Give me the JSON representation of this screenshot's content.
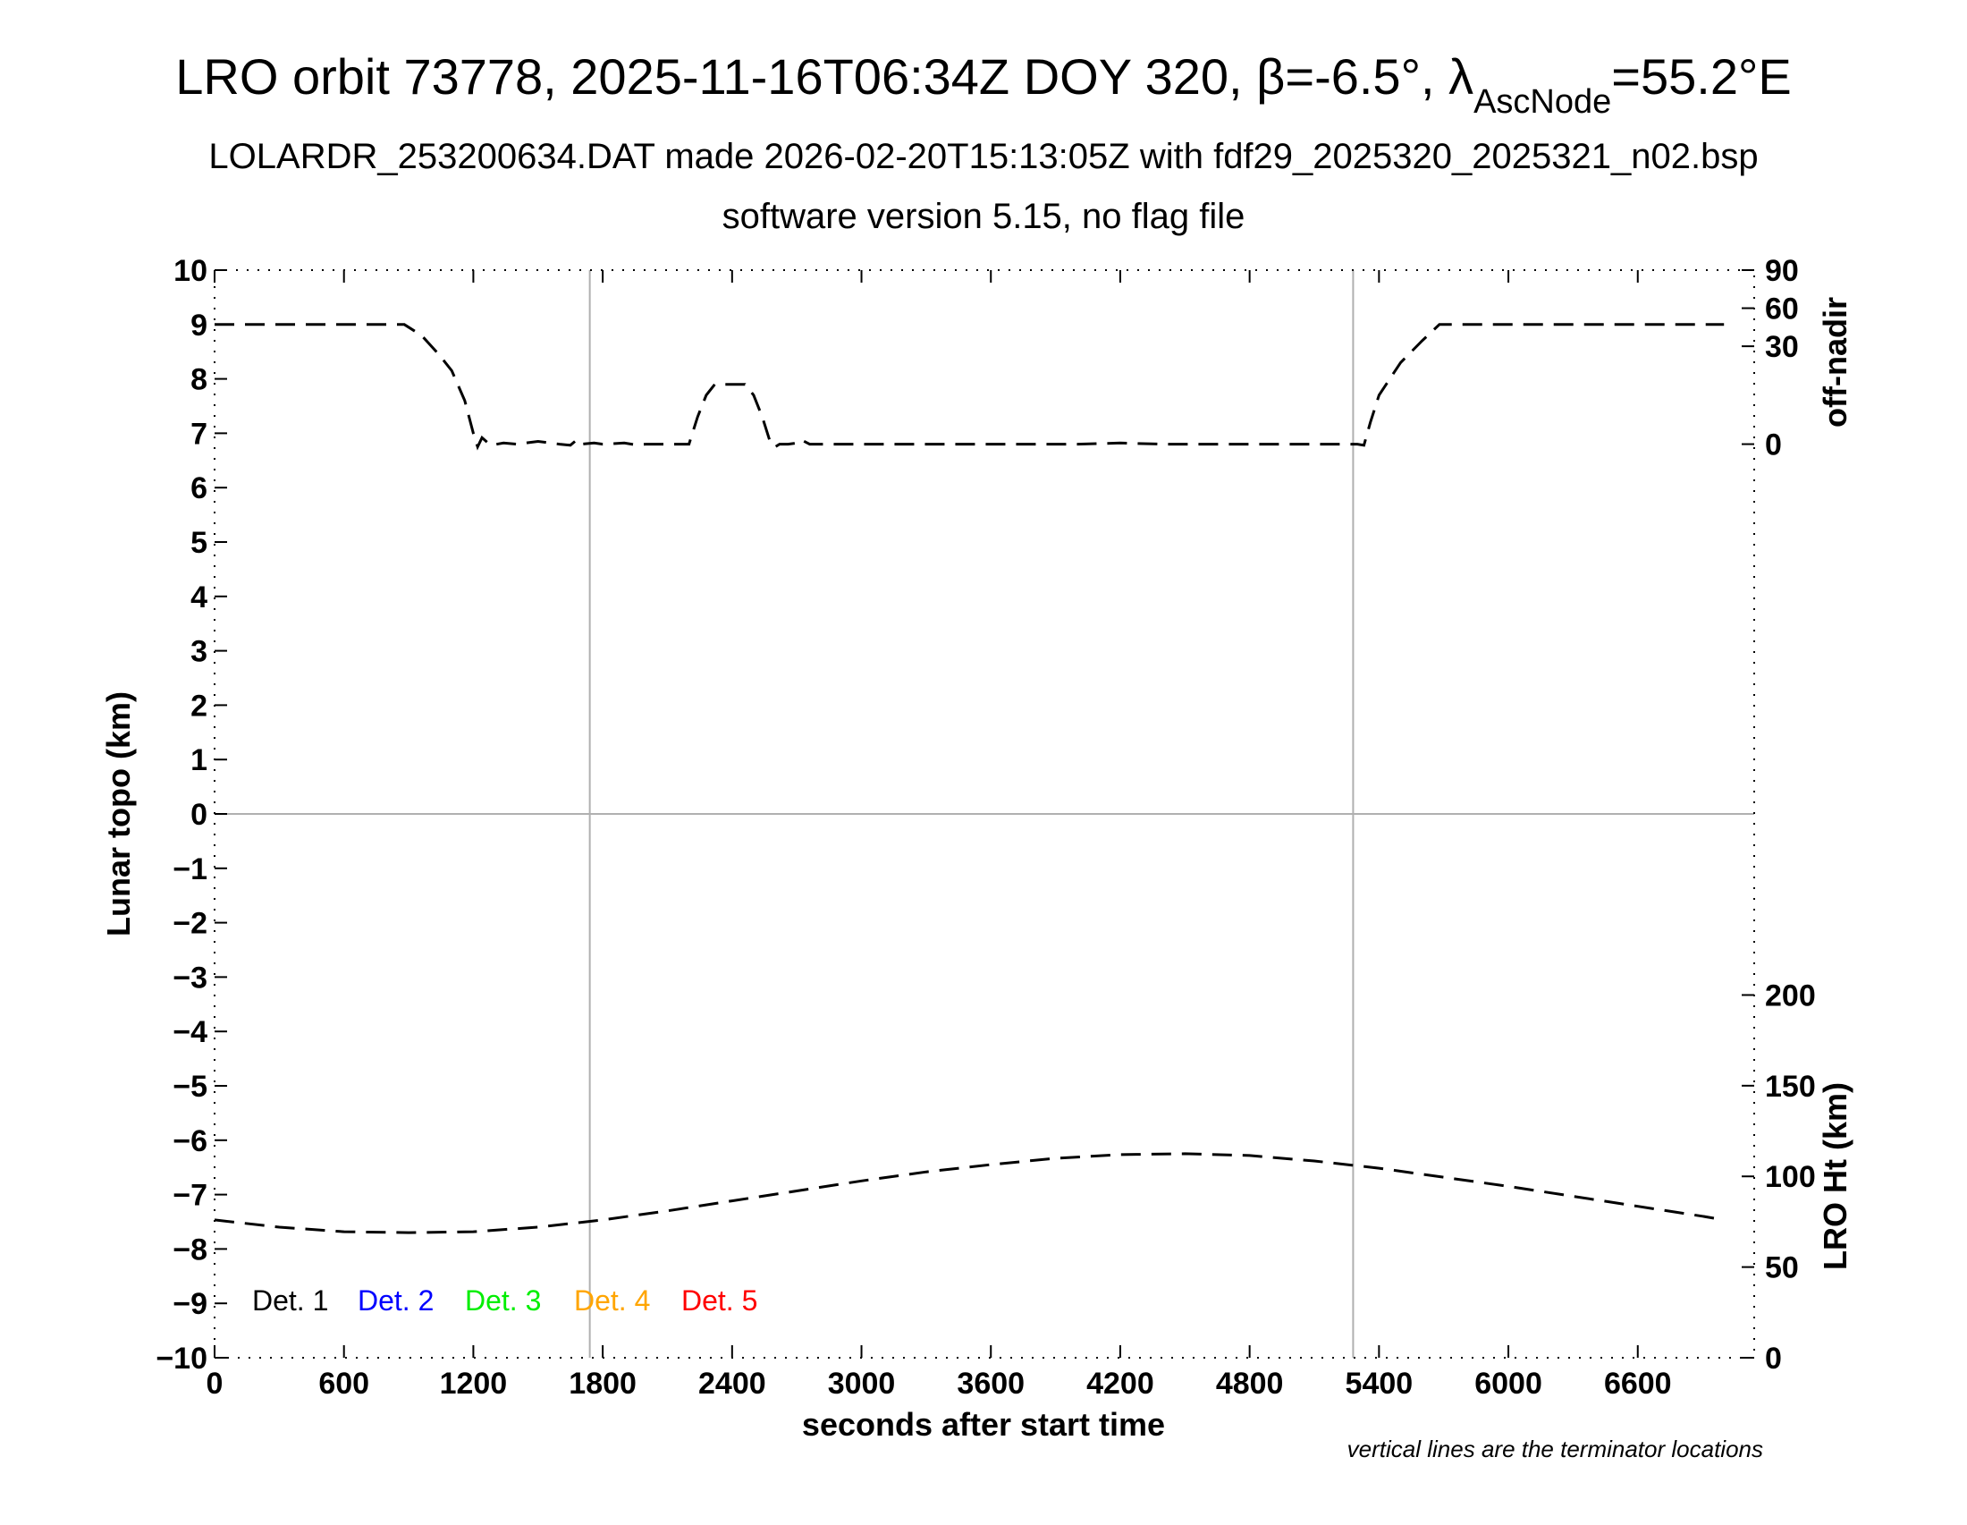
{
  "chart_data": {
    "type": "line",
    "title": {
      "prefix": "LRO orbit 73778, 2025-11-16T06:34Z DOY 320, ",
      "beta": "β=-6.5°, ",
      "lambda": "λ",
      "subscript": "AscNode",
      "suffix": "=55.2°E"
    },
    "subtitle_1": "LOLARDR_253200634.DAT made 2026-02-20T15:13:05Z with fdf29_2025320_2025321_n02.bsp",
    "subtitle_2": "software version 5.15, no flag file",
    "xlabel": "seconds after start time",
    "ylabel": "Lunar topo (km)",
    "y2label_top": "off-nadir",
    "y2label_bottom": "LRO Ht (km)",
    "xlim": [
      0,
      7140
    ],
    "ylim": [
      -10,
      10
    ],
    "x_ticks": [
      "0",
      "600",
      "1200",
      "1800",
      "2400",
      "3000",
      "3600",
      "4200",
      "4800",
      "5400",
      "6000",
      "6600"
    ],
    "x_tick_values": [
      0,
      600,
      1200,
      1800,
      2400,
      3000,
      3600,
      4200,
      4800,
      5400,
      6000,
      6600
    ],
    "y_ticks": [
      "10",
      "9",
      "8",
      "7",
      "6",
      "5",
      "4",
      "3",
      "2",
      "1",
      "0",
      "−1",
      "−2",
      "−3",
      "−4",
      "−5",
      "−6",
      "−7",
      "−8",
      "−9",
      "−10"
    ],
    "y_tick_values": [
      10,
      9,
      8,
      7,
      6,
      5,
      4,
      3,
      2,
      1,
      0,
      -1,
      -2,
      -3,
      -4,
      -5,
      -6,
      -7,
      -8,
      -9,
      -10
    ],
    "offnadir_ticks": [
      "90",
      "60",
      "30",
      "0"
    ],
    "offnadir_tick_values": [
      10,
      9.3,
      8.6,
      6.8
    ],
    "height_ticks": [
      "200",
      "150",
      "100",
      "50",
      "0"
    ],
    "height_tick_values": [
      200,
      150,
      100,
      50,
      0
    ],
    "height_scale": {
      "km_range": [
        0,
        200
      ],
      "topo_range": [
        -10,
        -3.33
      ]
    },
    "terminators": [
      1740,
      5280
    ],
    "legend": [
      {
        "label": "Det. 1",
        "color": "#000000"
      },
      {
        "label": "Det. 2",
        "color": "#0000ff"
      },
      {
        "label": "Det. 3",
        "color": "#00ee00"
      },
      {
        "label": "Det. 4",
        "color": "#ffa500"
      },
      {
        "label": "Det. 5",
        "color": "#ff0000"
      }
    ],
    "legend_position": "bottom-left",
    "note": "vertical lines are the terminator locations",
    "series": [
      {
        "name": "off-nadir",
        "x": [
          0,
          880,
          960,
          1040,
          1100,
          1160,
          1200,
          1220,
          1240,
          1280,
          1340,
          1400,
          1500,
          1600,
          1650,
          1680,
          1700,
          1760,
          1800,
          1900,
          1950,
          2000,
          2100,
          2200,
          2240,
          2280,
          2320,
          2360,
          2400,
          2460,
          2500,
          2540,
          2580,
          2600,
          2620,
          2660,
          2700,
          2720,
          2760,
          2900,
          3200,
          3600,
          4000,
          4200,
          4400,
          4800,
          5200,
          5300,
          5330,
          5360,
          5400,
          5500,
          5600,
          5680,
          5700,
          6000,
          6400,
          7000
        ],
        "y": [
          9.0,
          9.0,
          8.8,
          8.45,
          8.15,
          7.6,
          7.0,
          6.75,
          6.92,
          6.78,
          6.82,
          6.8,
          6.85,
          6.8,
          6.78,
          6.88,
          6.8,
          6.82,
          6.8,
          6.82,
          6.79,
          6.8,
          6.8,
          6.8,
          7.3,
          7.7,
          7.9,
          7.9,
          7.9,
          7.9,
          7.7,
          7.3,
          6.8,
          6.75,
          6.8,
          6.8,
          6.82,
          6.88,
          6.8,
          6.8,
          6.8,
          6.8,
          6.8,
          6.82,
          6.8,
          6.8,
          6.8,
          6.8,
          6.78,
          7.2,
          7.7,
          8.3,
          8.7,
          9.0,
          9.0,
          9.0,
          9.0,
          9.0
        ]
      },
      {
        "name": "LRO Ht",
        "x": [
          0,
          300,
          600,
          900,
          1200,
          1500,
          1800,
          2100,
          2400,
          2700,
          3000,
          3300,
          3600,
          3900,
          4200,
          4500,
          4800,
          5100,
          5400,
          5700,
          6000,
          6300,
          6600,
          6900,
          7000
        ],
        "y": [
          76,
          72,
          69.5,
          69,
          69.5,
          72,
          76,
          81,
          86.5,
          92,
          97.5,
          102.5,
          106.5,
          110,
          112,
          112.5,
          111.5,
          108.5,
          104.5,
          99.5,
          94.5,
          89,
          83.5,
          78,
          76
        ]
      }
    ]
  }
}
